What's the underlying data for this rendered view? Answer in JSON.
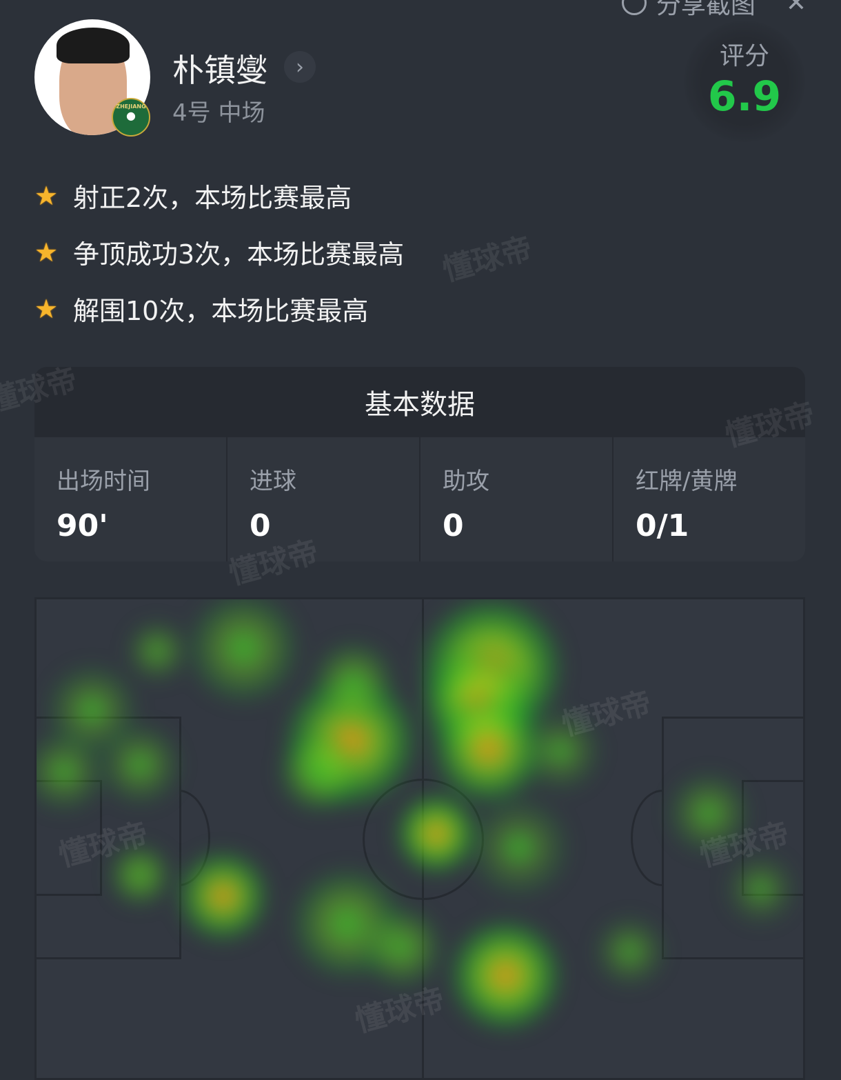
{
  "topbar": {
    "share_label": "分享截图",
    "close_icon": "close-icon"
  },
  "player": {
    "name": "朴镇燮",
    "number_position": "4号 中场",
    "club_badge_text": "ZHEJIANG"
  },
  "rating": {
    "label": "评分",
    "value": "6.9",
    "color": "#22c84a"
  },
  "highlights": [
    {
      "icon": "star-icon",
      "text": "射正2次，本场比赛最高"
    },
    {
      "icon": "star-icon",
      "text": "争顶成功3次，本场比赛最高"
    },
    {
      "icon": "star-icon",
      "text": "解围10次，本场比赛最高"
    }
  ],
  "basic_stats": {
    "title": "基本数据",
    "items": [
      {
        "label": "出场时间",
        "value": "90'"
      },
      {
        "label": "进球",
        "value": "0"
      },
      {
        "label": "助攻",
        "value": "0"
      },
      {
        "label": "红牌/黄牌",
        "value": "0/1"
      }
    ]
  },
  "watermark": "懂球帝"
}
